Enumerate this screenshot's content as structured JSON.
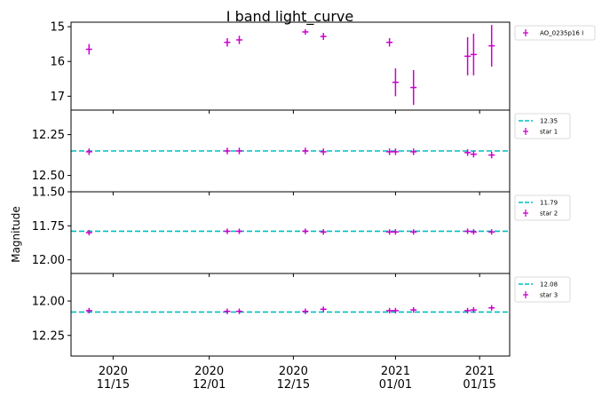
{
  "chart_data": {
    "type": "scatter",
    "title": "I band light_curve",
    "ylabel": "Magnitude",
    "x_ticks": [
      {
        "date": "2020-11-15",
        "label": "2020\n11/15"
      },
      {
        "date": "2020-12-01",
        "label": "2020\n12/01"
      },
      {
        "date": "2020-12-15",
        "label": "2020\n12/15"
      },
      {
        "date": "2021-01-01",
        "label": "2021\n01/01"
      },
      {
        "date": "2021-01-15",
        "label": "2021\n01/15"
      }
    ],
    "xlim": [
      "2020-11-08",
      "2021-01-20"
    ],
    "legend_position": "outside-right",
    "colors": {
      "points": "#cc00cc",
      "reference": "#00bfbf"
    },
    "panels": [
      {
        "series_name": "AO_0235p16 I",
        "ylim": [
          17.4,
          14.87
        ],
        "yticks": [
          15,
          16,
          17
        ],
        "points": [
          {
            "date": "2020-11-11",
            "y": 15.65,
            "err": 0.15
          },
          {
            "date": "2020-12-04",
            "y": 15.45,
            "err": 0.12
          },
          {
            "date": "2020-12-06",
            "y": 15.38,
            "err": 0.12
          },
          {
            "date": "2020-12-17",
            "y": 15.15,
            "err": 0.08
          },
          {
            "date": "2020-12-20",
            "y": 15.28,
            "err": 0.1
          },
          {
            "date": "2020-12-31",
            "y": 15.45,
            "err": 0.12
          },
          {
            "date": "2021-01-01",
            "y": 16.6,
            "err": 0.4
          },
          {
            "date": "2021-01-04",
            "y": 16.75,
            "err": 0.5
          },
          {
            "date": "2021-01-13",
            "y": 15.85,
            "err": 0.55
          },
          {
            "date": "2021-01-14",
            "y": 15.8,
            "err": 0.6
          },
          {
            "date": "2021-01-17",
            "y": 15.55,
            "err": 0.6
          }
        ]
      },
      {
        "series_name": "star 1",
        "reference": 12.35,
        "reference_label": "12.35",
        "ylim": [
          12.6,
          12.1
        ],
        "yticks": [
          12.25,
          12.5
        ],
        "ytick_labels": [
          "12.25",
          "12.50"
        ],
        "points": [
          {
            "date": "2020-11-11",
            "y": 12.355,
            "err": 0.02
          },
          {
            "date": "2020-12-04",
            "y": 12.35,
            "err": 0.02
          },
          {
            "date": "2020-12-06",
            "y": 12.35,
            "err": 0.02
          },
          {
            "date": "2020-12-17",
            "y": 12.35,
            "err": 0.02
          },
          {
            "date": "2020-12-20",
            "y": 12.355,
            "err": 0.02
          },
          {
            "date": "2020-12-31",
            "y": 12.355,
            "err": 0.02
          },
          {
            "date": "2021-01-01",
            "y": 12.355,
            "err": 0.02
          },
          {
            "date": "2021-01-04",
            "y": 12.355,
            "err": 0.02
          },
          {
            "date": "2021-01-13",
            "y": 12.36,
            "err": 0.02
          },
          {
            "date": "2021-01-14",
            "y": 12.37,
            "err": 0.02
          },
          {
            "date": "2021-01-17",
            "y": 12.375,
            "err": 0.02
          }
        ]
      },
      {
        "series_name": "star 2",
        "reference": 11.79,
        "reference_label": "11.79",
        "ylim": [
          12.1,
          11.5
        ],
        "yticks": [
          11.5,
          11.75,
          12.0
        ],
        "ytick_labels": [
          "11.50",
          "11.75",
          "12.00"
        ],
        "points": [
          {
            "date": "2020-11-11",
            "y": 11.8,
            "err": 0.02
          },
          {
            "date": "2020-12-04",
            "y": 11.79,
            "err": 0.02
          },
          {
            "date": "2020-12-06",
            "y": 11.79,
            "err": 0.02
          },
          {
            "date": "2020-12-17",
            "y": 11.79,
            "err": 0.02
          },
          {
            "date": "2020-12-20",
            "y": 11.795,
            "err": 0.02
          },
          {
            "date": "2020-12-31",
            "y": 11.795,
            "err": 0.02
          },
          {
            "date": "2021-01-01",
            "y": 11.795,
            "err": 0.02
          },
          {
            "date": "2021-01-04",
            "y": 11.795,
            "err": 0.02
          },
          {
            "date": "2021-01-13",
            "y": 11.79,
            "err": 0.02
          },
          {
            "date": "2021-01-14",
            "y": 11.795,
            "err": 0.02
          },
          {
            "date": "2021-01-17",
            "y": 11.795,
            "err": 0.02
          }
        ]
      },
      {
        "series_name": "star 3",
        "reference": 12.08,
        "reference_label": "12.08",
        "ylim": [
          12.4,
          11.8
        ],
        "yticks": [
          12.0,
          12.25
        ],
        "ytick_labels": [
          "12.00",
          "12.25"
        ],
        "points": [
          {
            "date": "2020-11-11",
            "y": 12.07,
            "err": 0.02
          },
          {
            "date": "2020-12-04",
            "y": 12.075,
            "err": 0.02
          },
          {
            "date": "2020-12-06",
            "y": 12.075,
            "err": 0.02
          },
          {
            "date": "2020-12-17",
            "y": 12.075,
            "err": 0.02
          },
          {
            "date": "2020-12-20",
            "y": 12.06,
            "err": 0.02
          },
          {
            "date": "2020-12-31",
            "y": 12.07,
            "err": 0.02
          },
          {
            "date": "2021-01-01",
            "y": 12.07,
            "err": 0.02
          },
          {
            "date": "2021-01-04",
            "y": 12.065,
            "err": 0.02
          },
          {
            "date": "2021-01-13",
            "y": 12.07,
            "err": 0.02
          },
          {
            "date": "2021-01-14",
            "y": 12.065,
            "err": 0.02
          },
          {
            "date": "2021-01-17",
            "y": 12.05,
            "err": 0.02
          }
        ]
      }
    ]
  }
}
